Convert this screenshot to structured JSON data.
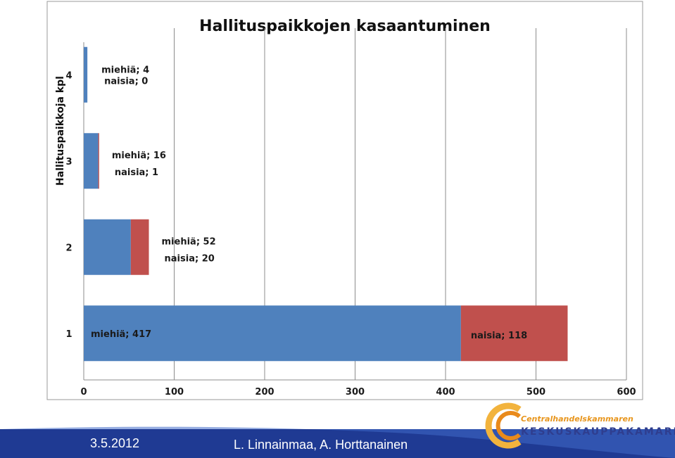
{
  "chart_data": {
    "type": "bar",
    "orientation": "horizontal",
    "stacked": true,
    "title": "Hallituspaikkojen kasaantuminen",
    "ylabel": "Hallituspaikkoja  kpl",
    "xlabel": "",
    "xlim": [
      0,
      600
    ],
    "x_ticks": [
      "0",
      "100",
      "200",
      "300",
      "400",
      "500",
      "600"
    ],
    "categories": [
      "4",
      "3",
      "2",
      "1"
    ],
    "grid": true,
    "series": [
      {
        "name": "miehiä",
        "color": "#4f81bd",
        "values": [
          4,
          16,
          52,
          417
        ]
      },
      {
        "name": "naisia",
        "color": "#c0504d",
        "values": [
          0,
          1,
          20,
          118
        ]
      }
    ],
    "annotations": [
      {
        "category": "4",
        "lines": [
          "miehiä; 4",
          "naisia; 0"
        ]
      },
      {
        "category": "3",
        "lines": [
          "miehiä; 16",
          "naisia; 1"
        ]
      },
      {
        "category": "2",
        "lines": [
          "miehiä; 52",
          "naisia; 20"
        ]
      },
      {
        "category": "1",
        "lines": [
          "miehiä; 417",
          "naisia;  118"
        ]
      }
    ]
  },
  "footer": {
    "date": "3.5.2012",
    "authors": "L. Linnainmaa, A. Horttanainen",
    "logo_line1": "Centralhandelskammaren",
    "logo_line2": "KESKUSKAUPPAKAMARI",
    "band_color": "#1f3a93"
  }
}
